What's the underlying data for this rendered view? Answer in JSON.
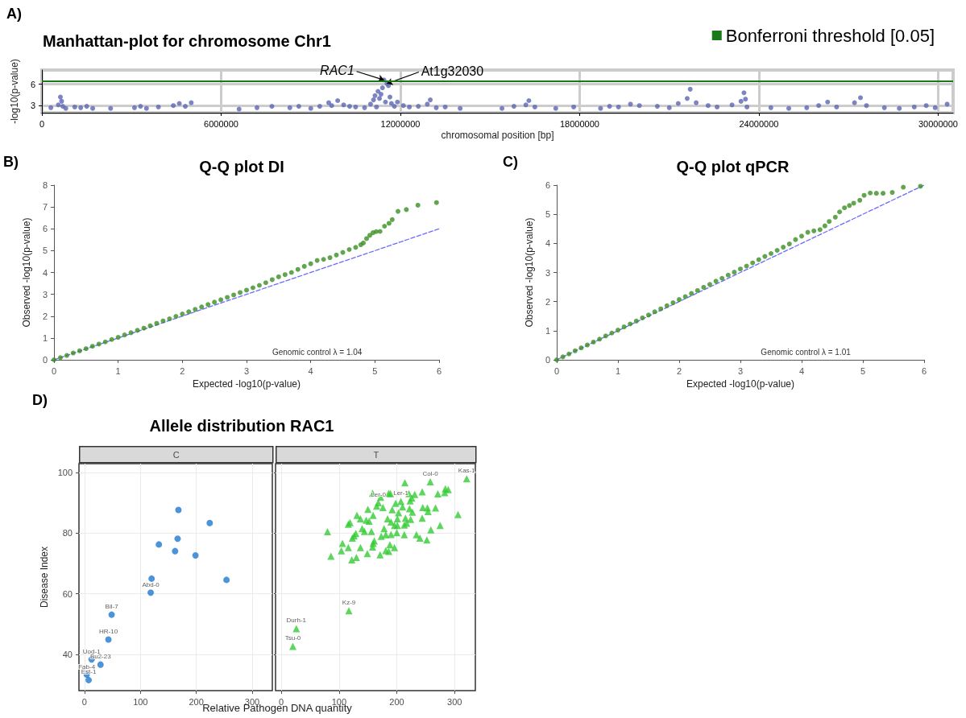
{
  "chart_data": [
    {
      "type": "scatter",
      "title": "Manhattan-plot for chromosome Chr1",
      "xlabel": "chromosomal position [bp]",
      "ylabel": "-log10(p-value)",
      "annotations": [
        "A)",
        {
          "text": "RAC1",
          "x": 11450000,
          "y": 6.6
        },
        {
          "text": "At1g32030",
          "x": 11550000,
          "y": 6.1
        }
      ],
      "series": [
        {
          "color": "#5b67b1",
          "x": [
            300000,
            550000,
            620000,
            660000,
            700000,
            800000,
            1100000,
            1300000,
            1500000,
            1700000,
            2300000,
            3100000,
            3300000,
            3500000,
            3900000,
            4400000,
            4600000,
            4800000,
            5000000,
            6600000,
            7200000,
            7700000,
            8300000,
            8600000,
            9000000,
            9300000,
            9600000,
            9700000,
            9900000,
            10100000,
            10300000,
            10500000,
            10800000,
            11000000,
            11100000,
            11150000,
            11200000,
            11250000,
            11300000,
            11350000,
            11400000,
            11450000,
            11500000,
            11550000,
            11600000,
            11650000,
            11700000,
            11800000,
            11900000,
            12100000,
            12300000,
            12600000,
            12900000,
            13000000,
            13200000,
            13500000,
            14000000,
            15400000,
            15800000,
            16200000,
            16300000,
            16500000,
            17200000,
            17800000,
            18700000,
            19000000,
            19300000,
            19700000,
            20000000,
            20600000,
            21000000,
            21300000,
            21600000,
            21700000,
            21900000,
            22300000,
            22600000,
            23100000,
            23400000,
            23500000,
            23550000,
            23600000,
            24400000,
            25000000,
            25600000,
            26000000,
            26300000,
            26600000,
            27200000,
            27400000,
            27600000,
            28200000,
            28700000,
            29200000,
            29600000,
            29900000,
            30300000
          ],
          "values": [
            2.7,
            3.1,
            4.2,
            3.6,
            2.9,
            2.6,
            2.8,
            2.7,
            2.9,
            2.6,
            2.6,
            2.7,
            2.9,
            2.6,
            2.8,
            3.0,
            3.3,
            2.9,
            3.4,
            2.5,
            2.7,
            2.9,
            2.7,
            2.9,
            2.6,
            2.9,
            3.4,
            3.0,
            3.7,
            3.1,
            2.9,
            2.8,
            2.7,
            3.2,
            3.8,
            4.4,
            2.8,
            5.0,
            4.0,
            4.6,
            5.5,
            6.6,
            3.5,
            6.1,
            5.8,
            4.2,
            3.3,
            2.9,
            3.5,
            3.0,
            2.8,
            2.9,
            3.2,
            3.8,
            2.7,
            2.8,
            2.6,
            2.6,
            2.9,
            3.1,
            3.7,
            2.8,
            2.6,
            2.8,
            2.6,
            2.9,
            2.8,
            3.2,
            3.0,
            2.9,
            2.7,
            3.3,
            4.0,
            5.3,
            3.4,
            3.0,
            2.8,
            3.1,
            3.6,
            4.8,
            3.9,
            2.8,
            2.7,
            2.6,
            2.7,
            3.0,
            3.5,
            2.8,
            3.4,
            4.1,
            3.0,
            2.7,
            2.6,
            2.8,
            3.0,
            2.7,
            3.2
          ]
        }
      ],
      "ref_lines": [
        {
          "axis": "y",
          "value": 6.4,
          "label": "Bonferroni threshold [0.05]",
          "color": "#1a7a1a"
        }
      ],
      "marker": "circle",
      "legend": "top right",
      "grid": true,
      "xlim": [
        0,
        30500000
      ],
      "xticks": [
        0,
        6000000,
        12000000,
        18000000,
        24000000,
        30000000
      ],
      "ylim": [
        2,
        8
      ],
      "yticks": [
        3,
        6
      ]
    },
    {
      "type": "scatter",
      "title": "Q-Q plot DI",
      "xlabel": "Expected -log10(p-value)",
      "ylabel": "Observed -log10(p-value)",
      "annotations": [
        "B)",
        "Genomic control λ = 1.04"
      ],
      "series": [
        {
          "color": "#3a8f22",
          "marker": "circle",
          "x": [
            0,
            0.1,
            0.2,
            0.3,
            0.4,
            0.5,
            0.6,
            0.7,
            0.8,
            0.9,
            1,
            1.1,
            1.2,
            1.3,
            1.4,
            1.5,
            1.6,
            1.7,
            1.8,
            1.9,
            2,
            2.1,
            2.2,
            2.3,
            2.4,
            2.5,
            2.6,
            2.7,
            2.8,
            2.9,
            3,
            3.1,
            3.2,
            3.3,
            3.4,
            3.5,
            3.6,
            3.7,
            3.8,
            3.9,
            4,
            4.1,
            4.2,
            4.3,
            4.4,
            4.5,
            4.6,
            4.7,
            4.78,
            4.82,
            4.87,
            4.92,
            4.97,
            5.02,
            5.08,
            5.15,
            5.22,
            5.27,
            5.36,
            5.49,
            5.67,
            5.96
          ],
          "values": [
            0,
            0.1,
            0.2,
            0.31,
            0.41,
            0.51,
            0.62,
            0.72,
            0.82,
            0.93,
            1.03,
            1.14,
            1.24,
            1.35,
            1.45,
            1.56,
            1.67,
            1.78,
            1.88,
            1.99,
            2.1,
            2.2,
            2.31,
            2.42,
            2.53,
            2.64,
            2.75,
            2.86,
            2.97,
            3.08,
            3.19,
            3.3,
            3.41,
            3.53,
            3.67,
            3.8,
            3.9,
            4.0,
            4.14,
            4.28,
            4.4,
            4.55,
            4.6,
            4.68,
            4.8,
            4.92,
            5.05,
            5.15,
            5.27,
            5.35,
            5.55,
            5.7,
            5.82,
            5.87,
            5.88,
            6.12,
            6.25,
            6.42,
            6.8,
            6.88,
            7.08,
            7.2
          ]
        },
        {
          "type": "line",
          "color": "#6b6bff",
          "marker": "none",
          "line_style": "dashed",
          "x": [
            0,
            6
          ],
          "values": [
            0,
            6
          ]
        }
      ],
      "xlim": [
        0,
        6
      ],
      "xticks": [
        0,
        1,
        2,
        3,
        4,
        5,
        6
      ],
      "ylim": [
        0,
        8
      ],
      "yticks": [
        0,
        1,
        2,
        3,
        4,
        5,
        6,
        7,
        8
      ]
    },
    {
      "type": "scatter",
      "title": "Q-Q plot qPCR",
      "xlabel": "Expected -log10(p-value)",
      "ylabel": "Observed -log10(p-value)",
      "annotations": [
        "C)",
        "Genomic control λ = 1.01"
      ],
      "series": [
        {
          "color": "#3a8f22",
          "marker": "circle",
          "x": [
            0,
            0.1,
            0.2,
            0.3,
            0.4,
            0.5,
            0.6,
            0.7,
            0.8,
            0.9,
            1,
            1.1,
            1.2,
            1.3,
            1.4,
            1.5,
            1.6,
            1.7,
            1.8,
            1.9,
            2,
            2.1,
            2.2,
            2.3,
            2.4,
            2.5,
            2.6,
            2.7,
            2.8,
            2.9,
            3,
            3.1,
            3.2,
            3.3,
            3.4,
            3.5,
            3.6,
            3.7,
            3.8,
            3.9,
            4,
            4.1,
            4.2,
            4.3,
            4.38,
            4.45,
            4.55,
            4.62,
            4.7,
            4.78,
            4.85,
            4.95,
            5.02,
            5.12,
            5.22,
            5.33,
            5.48,
            5.66,
            5.94
          ],
          "values": [
            0,
            0.1,
            0.2,
            0.31,
            0.41,
            0.51,
            0.61,
            0.71,
            0.82,
            0.92,
            1.02,
            1.13,
            1.23,
            1.33,
            1.44,
            1.54,
            1.65,
            1.75,
            1.86,
            1.96,
            2.07,
            2.17,
            2.28,
            2.38,
            2.49,
            2.59,
            2.7,
            2.8,
            2.91,
            3.01,
            3.12,
            3.22,
            3.33,
            3.44,
            3.55,
            3.65,
            3.76,
            3.87,
            3.98,
            4.13,
            4.25,
            4.38,
            4.43,
            4.47,
            4.6,
            4.75,
            4.9,
            5.08,
            5.22,
            5.3,
            5.38,
            5.48,
            5.65,
            5.73,
            5.72,
            5.72,
            5.75,
            5.93,
            5.96
          ]
        },
        {
          "type": "line",
          "color": "#6b6bff",
          "marker": "none",
          "line_style": "dashed",
          "x": [
            0,
            6
          ],
          "values": [
            0,
            6
          ]
        }
      ],
      "xlim": [
        0,
        6
      ],
      "xticks": [
        0,
        1,
        2,
        3,
        4,
        5,
        6
      ],
      "ylim": [
        0,
        6
      ],
      "yticks": [
        0,
        1,
        2,
        3,
        4,
        5,
        6
      ]
    },
    {
      "type": "scatter",
      "title": "Allele distribution RAC1",
      "subtitle": "C",
      "xlabel": "Relative Pathogen DNA quantity",
      "ylabel": "Disease Index",
      "annotations": [
        "D)"
      ],
      "marker": "circle",
      "grid": true,
      "series": [
        {
          "color": "#1f78d1",
          "x": [
            168,
            224,
            166.5,
            133,
            162,
            198.5,
            254,
            120,
            118.4,
            48.5,
            42.7,
            12.6,
            28.6,
            3.9,
            7.3
          ],
          "values": [
            87.7,
            83.4,
            78.2,
            76.3,
            74.1,
            72.7,
            64.6,
            65.0,
            60.4,
            53.1,
            44.9,
            38.3,
            36.6,
            33.3,
            31.5
          ],
          "value_labels": [
            null,
            null,
            null,
            null,
            null,
            null,
            null,
            null,
            "Abd-0",
            "Bil-7",
            "HR-10",
            "Uod-1",
            "Bu2-23",
            "Fab-4",
            "Est-1"
          ]
        }
      ],
      "xlim": [
        -10,
        336
      ],
      "xticks": [
        0,
        100,
        200,
        300
      ],
      "ylim": [
        28,
        103
      ],
      "yticks": [
        40,
        60,
        80,
        100
      ]
    },
    {
      "type": "scatter",
      "subtitle": "T",
      "marker": "triangle",
      "grid": true,
      "tick_labels": "x",
      "series": [
        {
          "color": "#33cc33",
          "x": [
            258,
            321,
            207,
            168,
            117,
            26,
            20,
            214,
            158,
            172,
            186,
            189,
            221,
            231,
            244,
            271,
            284,
            289,
            283,
            226,
            223,
            198,
            210,
            222,
            227,
            245,
            253,
            267,
            254,
            244,
            192,
            176,
            165,
            150,
            159,
            131,
            137,
            147,
            152,
            119,
            116,
            184,
            190,
            203,
            201,
            215,
            224,
            217,
            196,
            201,
            213,
            178,
            140,
            144,
            156,
            129,
            126,
            123,
            80,
            259,
            275,
            173,
            181,
            190,
            200,
            213,
            234,
            240,
            252,
            106,
            116,
            137,
            159,
            158,
            161,
            188,
            196,
            181,
            186,
            171,
            149,
            130,
            122,
            104,
            86,
            306
          ],
          "values": [
            97.0,
            98.0,
            90.5,
            90.1,
            54.4,
            48.5,
            42.6,
            96.7,
            93.2,
            91.9,
            93.2,
            93.1,
            93.1,
            92.8,
            93.7,
            93.0,
            94.7,
            94.4,
            93.4,
            91.6,
            90.7,
            89.9,
            88.7,
            88.1,
            87.0,
            88.5,
            88.4,
            88.4,
            87.2,
            85.0,
            87.8,
            88.5,
            89.0,
            87.9,
            85.9,
            85.9,
            84.8,
            84.3,
            84.0,
            83.5,
            83.0,
            84.8,
            83.7,
            86.8,
            84.8,
            85.0,
            84.6,
            83.3,
            82.6,
            82.6,
            82.7,
            81.5,
            81.5,
            80.6,
            80.6,
            79.9,
            79.1,
            78.4,
            80.5,
            81.1,
            82.6,
            79.0,
            79.5,
            79.6,
            80.2,
            79.5,
            79.5,
            78.4,
            77.8,
            76.7,
            75.3,
            75.3,
            76.7,
            75.5,
            77.5,
            76.2,
            75.3,
            74.3,
            74.0,
            72.9,
            73.3,
            72.0,
            71.2,
            74.2,
            72.4,
            86.2
          ],
          "value_labels": [
            "Col-0",
            "Kas-1",
            "Ler-1",
            "Ler-0",
            "Kz-9",
            "Durh-1",
            "Tsu-0",
            null,
            null,
            null,
            null,
            null,
            null,
            null,
            null,
            null,
            null,
            null,
            null,
            null,
            null,
            null,
            null,
            null,
            null,
            null,
            null,
            null,
            null,
            null,
            null,
            null,
            null,
            null,
            null,
            null,
            null,
            null,
            null,
            null,
            null,
            null,
            null,
            null,
            null,
            null,
            null,
            null,
            null,
            null,
            null,
            null,
            null,
            null,
            null,
            null,
            null,
            null,
            null,
            null,
            null,
            null,
            null,
            null,
            null,
            null,
            null,
            null,
            null,
            null,
            null,
            null,
            null,
            null,
            null,
            null,
            null,
            null,
            null,
            null,
            null,
            null,
            null,
            null,
            null,
            null
          ]
        }
      ],
      "xlim": [
        -10,
        336
      ],
      "xticks": [
        0,
        100,
        200,
        300
      ],
      "ylim": [
        28,
        103
      ],
      "yticks": [
        40,
        60,
        80,
        100
      ]
    }
  ]
}
